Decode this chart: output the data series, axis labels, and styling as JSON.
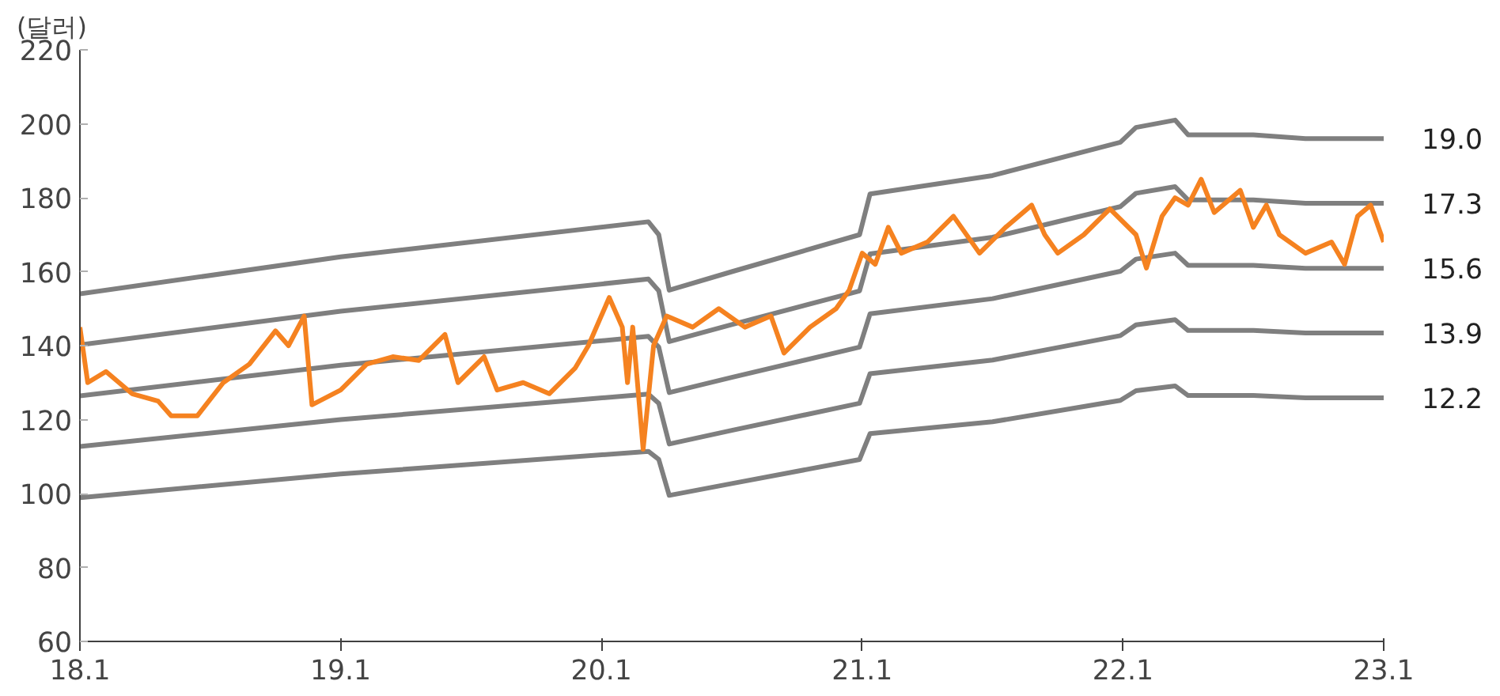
{
  "chart_data": {
    "type": "line",
    "ylabel": "(달러)",
    "xlim": [
      18.1,
      23.1
    ],
    "xticks": [
      18.1,
      19.1,
      20.1,
      21.1,
      22.1,
      23.1
    ],
    "ylim": [
      60,
      220
    ],
    "yticks": [
      60,
      80,
      100,
      120,
      140,
      160,
      180,
      200,
      220
    ],
    "grid": false,
    "marker": "none",
    "line_style": "solid",
    "series": [
      {
        "name": "19.0",
        "color": "#7f7f7f",
        "x": [
          18.1,
          19.1,
          20.28,
          20.32,
          20.36,
          20.6,
          21.09,
          21.13,
          21.6,
          22.09,
          22.15,
          22.3,
          22.35,
          22.6,
          22.8,
          23.1
        ],
        "values": [
          154,
          164,
          173.5,
          170,
          155,
          160,
          170,
          181,
          186,
          195,
          199,
          201,
          197,
          197,
          196,
          196
        ]
      },
      {
        "name": "17.3",
        "color": "#7f7f7f",
        "x": [
          18.1,
          19.1,
          20.28,
          20.32,
          20.36,
          20.6,
          21.09,
          21.13,
          21.6,
          22.09,
          22.15,
          22.3,
          22.35,
          22.6,
          22.8,
          23.1
        ],
        "values": [
          140.2,
          149.3,
          158.0,
          154.8,
          141.1,
          145.7,
          154.8,
          164.8,
          169.3,
          177.6,
          181.2,
          183.0,
          179.4,
          179.4,
          178.5,
          178.5
        ]
      },
      {
        "name": "15.6",
        "color": "#7f7f7f",
        "x": [
          18.1,
          19.1,
          20.28,
          20.32,
          20.36,
          20.6,
          21.09,
          21.13,
          21.6,
          22.09,
          22.15,
          22.3,
          22.35,
          22.6,
          22.8,
          23.1
        ],
        "values": [
          126.4,
          134.7,
          142.5,
          139.6,
          127.3,
          131.4,
          139.6,
          148.6,
          152.7,
          160.1,
          163.4,
          165.0,
          161.7,
          161.7,
          160.9,
          160.9
        ]
      },
      {
        "name": "13.9",
        "color": "#7f7f7f",
        "x": [
          18.1,
          19.1,
          20.28,
          20.32,
          20.36,
          20.6,
          21.09,
          21.13,
          21.6,
          22.09,
          22.15,
          22.3,
          22.35,
          22.6,
          22.8,
          23.1
        ],
        "values": [
          112.7,
          120.0,
          126.9,
          124.4,
          113.4,
          117.1,
          124.4,
          132.4,
          136.1,
          142.7,
          145.6,
          147.0,
          144.1,
          144.1,
          143.4,
          143.4
        ]
      },
      {
        "name": "12.2",
        "color": "#7f7f7f",
        "x": [
          18.1,
          19.1,
          20.28,
          20.32,
          20.36,
          20.6,
          21.09,
          21.13,
          21.6,
          22.09,
          22.15,
          22.3,
          22.35,
          22.6,
          22.8,
          23.1
        ],
        "values": [
          98.9,
          105.3,
          111.4,
          109.2,
          99.5,
          102.7,
          109.2,
          116.2,
          119.4,
          125.2,
          127.8,
          129.1,
          126.5,
          126.5,
          125.9,
          125.9
        ]
      },
      {
        "color": "#f58220",
        "x": [
          18.1,
          18.13,
          18.2,
          18.3,
          18.4,
          18.45,
          18.55,
          18.65,
          18.75,
          18.85,
          18.9,
          18.96,
          18.99,
          19.1,
          19.2,
          19.3,
          19.4,
          19.5,
          19.55,
          19.65,
          19.7,
          19.8,
          19.9,
          20.0,
          20.05,
          20.13,
          20.18,
          20.2,
          20.22,
          20.26,
          20.3,
          20.35,
          20.45,
          20.55,
          20.65,
          20.75,
          20.8,
          20.9,
          21.0,
          21.05,
          21.1,
          21.15,
          21.2,
          21.25,
          21.35,
          21.45,
          21.55,
          21.65,
          21.75,
          21.8,
          21.85,
          21.95,
          22.05,
          22.15,
          22.19,
          22.25,
          22.3,
          22.35,
          22.4,
          22.45,
          22.55,
          22.6,
          22.65,
          22.7,
          22.8,
          22.9,
          22.95,
          23.0,
          23.05,
          23.1
        ],
        "values": [
          145,
          130,
          133,
          127,
          125,
          121,
          121,
          130,
          135,
          144,
          140,
          148,
          124,
          128,
          135,
          137,
          136,
          143,
          130,
          137,
          128,
          130,
          127,
          134,
          140,
          153,
          145,
          130,
          145,
          112,
          140,
          148,
          145,
          150,
          145,
          148,
          138,
          145,
          150,
          155,
          165,
          162,
          172,
          165,
          168,
          175,
          165,
          172,
          178,
          170,
          165,
          170,
          177,
          170,
          161,
          175,
          180,
          178,
          185,
          176,
          182,
          172,
          178,
          170,
          165,
          168,
          162,
          175,
          178,
          168
        ]
      }
    ]
  }
}
